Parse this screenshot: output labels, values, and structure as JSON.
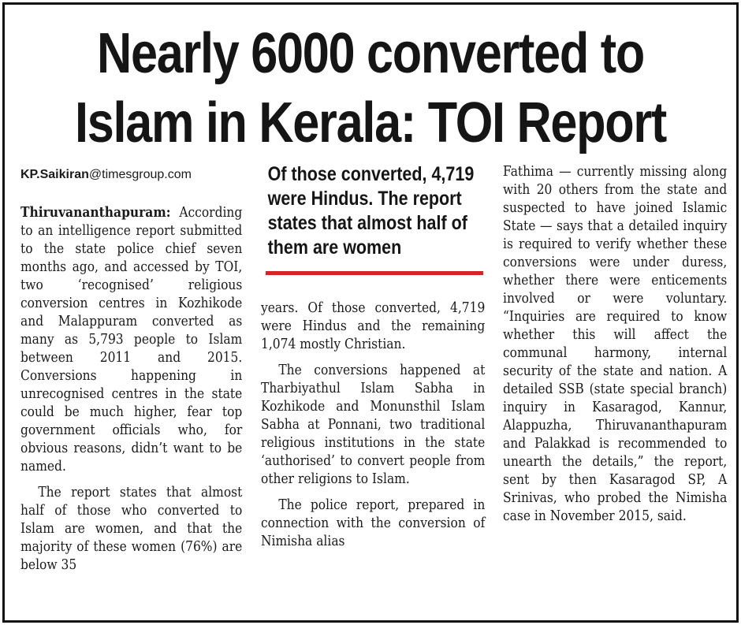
{
  "headline": {
    "line1": "Nearly 6000 converted to",
    "line2": "Islam in Kerala: TOI Report"
  },
  "byline": {
    "name": "KP.Saikiran",
    "domain": "@timesgroup.com"
  },
  "dateline": "Thiruvananthapuram:",
  "pullquote": {
    "text": "Of those converted, 4,719 were Hindus. The report states that almost half of them are women",
    "rule_color": "#d62323"
  },
  "columns": {
    "col1": {
      "p1": "According to an intelligence report submitted to the state police chief seven months ago, and accessed by TOI, two ‘recognised’ religious conversion centres in Kozhikode and Malappuram converted as many as 5,793 people to Islam between 2011 and 2015. Conversions happening in unrecognised centres in the state could be much higher, fear top government officials who, for obvious reasons, didn’t want to be named.",
      "p2": "The report states that almost half of those who converted to Islam are women, and that the majority of these women (76%) are below 35"
    },
    "col2": {
      "p1": "years. Of those converted, 4,719 were Hindus and the remaining 1,074 mostly Christian.",
      "p2": "The conversions happened at Tharbiyathul Islam Sabha in Kozhikode and Monunsthil Islam Sabha at Ponnani, two traditional religious institutions in the state ‘authorised’ to convert people from other religions to Islam.",
      "p3": "The police report, prepared in connection with the conversion of Nimisha alias"
    },
    "col3": {
      "p1": "Fathima — currently missing along with 20 others from the state and suspected to have joined Islamic State — says that a detailed inquiry is required to verify whether these conversions were under duress, whether there were enticements involved or were voluntary. “Inquiries are required to know whether this will affect the communal harmony, internal security of the state and nation. A detailed SSB (state special branch) inquiry in Kasaragod, Kannur, Alappuzha, Thiruvananthapuram and Palakkad is recommended to unearth the details,” the report, sent by then Kasaragod SP, A Srinivas, who probed the Nimisha case in November 2015, said."
    }
  }
}
